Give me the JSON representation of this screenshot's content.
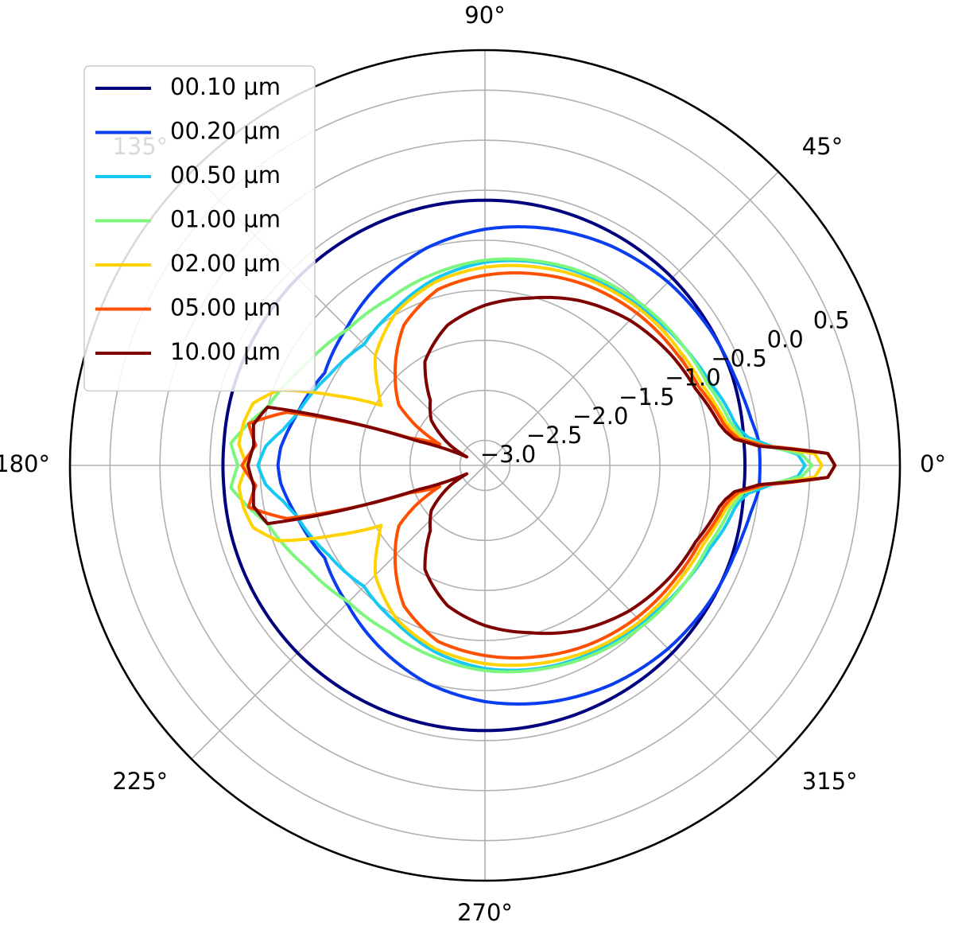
{
  "chart_data": {
    "type": "line",
    "projection": "polar",
    "angle_ticks_deg": [
      0,
      45,
      90,
      135,
      180,
      225,
      270,
      315
    ],
    "angle_tick_labels": [
      "0°",
      "45°",
      "90°",
      "135°",
      "180°",
      "225°",
      "270°",
      "315°"
    ],
    "r_ticks": [
      -3.0,
      -2.5,
      -2.0,
      -1.5,
      -1.0,
      -0.5,
      0.0,
      0.5
    ],
    "r_tick_labels": [
      "−3.0",
      "−2.5",
      "−2.0",
      "−1.5",
      "−1.0",
      "−0.5",
      "0.0",
      "0.5"
    ],
    "rlim": [
      -3.25,
      0.9
    ],
    "r_label_angle_deg": 22.5,
    "grid": true,
    "legend_position": "upper-left",
    "series": [
      {
        "name": "00.10 μm",
        "color": "#00007f",
        "angle_deg": [
          0,
          5,
          10,
          15,
          20,
          30,
          45,
          60,
          75,
          90,
          105,
          120,
          135,
          150,
          165,
          175,
          180
        ],
        "r": [
          -0.65,
          -0.65,
          -0.64,
          -0.63,
          -0.62,
          -0.61,
          -0.6,
          -0.6,
          -0.6,
          -0.6,
          -0.6,
          -0.6,
          -0.6,
          -0.61,
          -0.62,
          -0.63,
          -0.63
        ]
      },
      {
        "name": "00.20 μm",
        "color": "#0a3cf0",
        "angle_deg": [
          0,
          5,
          10,
          15,
          20,
          30,
          45,
          60,
          75,
          90,
          105,
          120,
          135,
          150,
          165,
          175,
          180
        ],
        "r": [
          -0.5,
          -0.5,
          -0.55,
          -0.58,
          -0.6,
          -0.62,
          -0.66,
          -0.72,
          -0.8,
          -0.89,
          -1.0,
          -1.15,
          -1.3,
          -1.4,
          -1.3,
          -1.2,
          -1.18
        ]
      },
      {
        "name": "00.50 μm",
        "color": "#16c9f2",
        "angle_deg": [
          0,
          2,
          4,
          6,
          8,
          10,
          15,
          20,
          30,
          45,
          60,
          75,
          90,
          105,
          120,
          135,
          150,
          165,
          170,
          175,
          180
        ],
        "r": [
          -0.05,
          -0.12,
          -0.4,
          -0.6,
          -0.68,
          -0.72,
          -0.78,
          -0.85,
          -0.93,
          -1.03,
          -1.09,
          -1.15,
          -1.22,
          -1.32,
          -1.45,
          -1.54,
          -1.45,
          -1.3,
          -1.2,
          -1.05,
          -0.98
        ]
      },
      {
        "name": "01.00 μm",
        "color": "#7cf67d",
        "angle_deg": [
          0,
          2,
          4,
          6,
          8,
          10,
          15,
          20,
          30,
          45,
          60,
          75,
          90,
          105,
          120,
          135,
          150,
          165,
          170,
          175,
          180
        ],
        "r": [
          0.02,
          -0.08,
          -0.45,
          -0.65,
          -0.71,
          -0.76,
          -0.82,
          -0.88,
          -0.93,
          -1.0,
          -1.07,
          -1.14,
          -1.2,
          -1.27,
          -1.33,
          -1.32,
          -1.2,
          -1.0,
          -0.85,
          -0.7,
          -0.78
        ]
      },
      {
        "name": "02.00 μm",
        "color": "#ffd200",
        "angle_deg": [
          0,
          2,
          4,
          6,
          8,
          10,
          15,
          20,
          30,
          45,
          60,
          75,
          90,
          105,
          120,
          135,
          145,
          150,
          155,
          160,
          165,
          170,
          175,
          180
        ],
        "r": [
          0.12,
          0.05,
          -0.45,
          -0.68,
          -0.75,
          -0.8,
          -0.87,
          -0.93,
          -0.99,
          -1.05,
          -1.12,
          -1.2,
          -1.27,
          -1.35,
          -1.48,
          -1.7,
          -1.95,
          -2.05,
          -1.6,
          -1.05,
          -0.85,
          -0.8,
          -0.78,
          -0.87
        ]
      },
      {
        "name": "05.00 μm",
        "color": "#ff4f00",
        "angle_deg": [
          0,
          2,
          4,
          6,
          8,
          10,
          15,
          20,
          30,
          45,
          60,
          75,
          90,
          105,
          120,
          135,
          145,
          150,
          155,
          160,
          165,
          170,
          175,
          180
        ],
        "r": [
          0.25,
          0.18,
          -0.45,
          -0.7,
          -0.78,
          -0.83,
          -0.9,
          -0.97,
          -1.03,
          -1.1,
          -1.18,
          -1.27,
          -1.35,
          -1.43,
          -1.63,
          -1.98,
          -2.2,
          -2.45,
          -2.75,
          -2.45,
          -1.2,
          -0.85,
          -0.95,
          -0.82
        ]
      },
      {
        "name": "10.00 μm",
        "color": "#7f0000",
        "angle_deg": [
          0,
          2,
          4,
          6,
          8,
          10,
          15,
          20,
          30,
          45,
          60,
          75,
          90,
          105,
          120,
          130,
          140,
          145,
          150,
          155,
          160,
          165,
          170,
          175,
          180
        ],
        "r": [
          0.25,
          0.18,
          -0.5,
          -0.74,
          -0.82,
          -0.87,
          -0.94,
          -1.01,
          -1.08,
          -1.2,
          -1.35,
          -1.52,
          -1.65,
          -1.8,
          -2.05,
          -2.4,
          -2.55,
          -2.7,
          -2.85,
          -3.05,
          -2.55,
          -1.0,
          -0.9,
          -0.93,
          -0.88
        ]
      }
    ]
  }
}
